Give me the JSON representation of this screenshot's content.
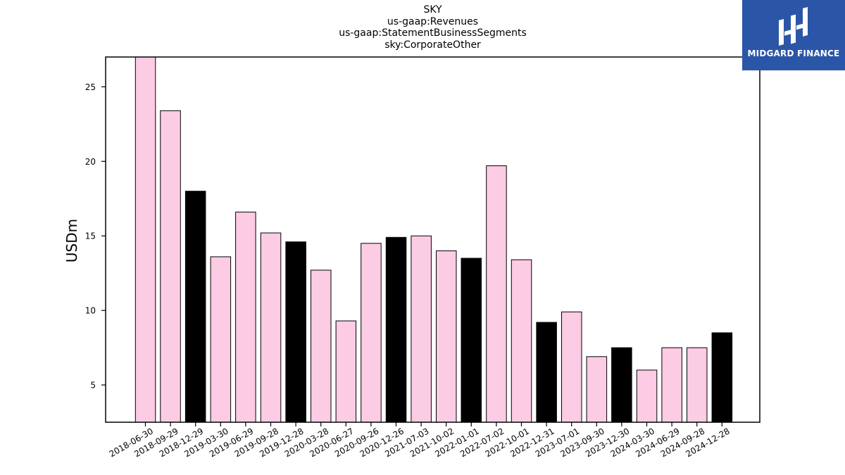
{
  "title_lines": [
    "SKY",
    "us-gaap:Revenues",
    "us-gaap:StatementBusinessSegments",
    "sky:CorporateOther"
  ],
  "logo": {
    "text": "MIDGARD FINANCE",
    "background": "#2b56a8",
    "icon": "midgard-logo-icon"
  },
  "colors": {
    "bar_default": "#fccbe4",
    "bar_highlight": "#000000",
    "bar_edge": "#000000"
  },
  "chart_data": {
    "type": "bar",
    "title": "SKY",
    "ylabel": "USDm",
    "xlabel": "",
    "ylim": [
      2.5,
      27
    ],
    "yticks": [
      5,
      10,
      15,
      20,
      25
    ],
    "grid": false,
    "legend": "none",
    "categories": [
      "2018-06-30",
      "2018-09-29",
      "2018-12-29",
      "2019-03-30",
      "2019-06-29",
      "2019-09-28",
      "2019-12-28",
      "2020-03-28",
      "2020-06-27",
      "2020-09-26",
      "2020-12-26",
      "2021-07-03",
      "2021-10-02",
      "2022-01-01",
      "2022-07-02",
      "2022-10-01",
      "2022-12-31",
      "2023-07-01",
      "2023-09-30",
      "2023-12-30",
      "2024-03-30",
      "2024-06-29",
      "2024-09-28",
      "2024-12-28"
    ],
    "values": [
      27.0,
      23.4,
      18.0,
      13.6,
      16.6,
      15.2,
      14.6,
      12.7,
      9.3,
      14.5,
      14.9,
      15.0,
      14.0,
      13.5,
      19.7,
      13.4,
      9.2,
      9.9,
      6.9,
      7.5,
      6.0,
      7.5,
      7.5,
      8.5
    ],
    "highlight": [
      false,
      false,
      true,
      false,
      false,
      false,
      true,
      false,
      false,
      false,
      true,
      false,
      false,
      true,
      false,
      false,
      true,
      false,
      false,
      true,
      false,
      false,
      false,
      true
    ]
  }
}
